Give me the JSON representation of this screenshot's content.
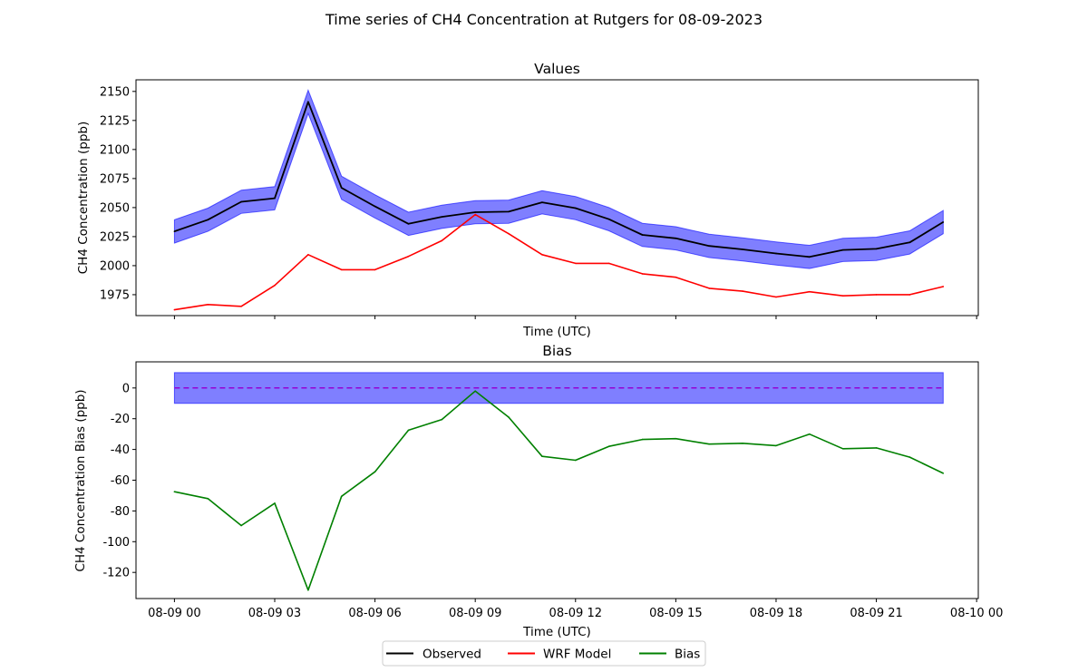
{
  "figure": {
    "suptitle": "Time series of CH4 Concentration at Rutgers for 08-09-2023"
  },
  "legend": {
    "placement": "bottom-center",
    "entries": [
      {
        "label": "Observed",
        "color": "#000000"
      },
      {
        "label": "WRF Model",
        "color": "#ff0000"
      },
      {
        "label": "Bias",
        "color": "#008000"
      }
    ]
  },
  "colors": {
    "observed": "#000000",
    "model": "#ff0000",
    "bias": "#008000",
    "band_fill": "#0000ff",
    "zero_line": "#9400d3"
  },
  "chart_data": [
    {
      "type": "line",
      "title": "Values",
      "xlabel": "Time (UTC)",
      "ylabel": "CH4 Concentration (ppb)",
      "x_tick_labels_shown": false,
      "yticks": [
        1975,
        2000,
        2025,
        2050,
        2075,
        2100,
        2125,
        2150
      ],
      "ylim": [
        1957,
        2160
      ],
      "xlim_hours": [
        -1.15,
        24.05
      ],
      "x_hours": [
        0,
        1,
        2,
        3,
        4,
        5,
        6,
        7,
        8,
        9,
        10,
        11,
        12,
        13,
        14,
        15,
        16,
        17,
        18,
        19,
        20,
        21,
        22,
        23
      ],
      "series": [
        {
          "name": "Observed",
          "color": "#000000",
          "values": [
            2029.5,
            2039.5,
            2055,
            2058,
            2141,
            2067,
            2051,
            2036,
            2042,
            2046,
            2046.5,
            2054.5,
            2049.5,
            2040,
            2026.5,
            2023.5,
            2017,
            2014,
            2010.5,
            2007.5,
            2013.5,
            2014.5,
            2020,
            2037.5
          ]
        },
        {
          "name": "WRF Model",
          "color": "#ff0000",
          "values": [
            1962,
            1966.5,
            1965,
            1983,
            2009.5,
            1996.5,
            1996.5,
            2008,
            2021.5,
            2044,
            2027.5,
            2009.5,
            2002,
            2002,
            1993,
            1990,
            1980.5,
            1978,
            1973,
            1977.5,
            1974,
            1975,
            1975,
            1982
          ]
        }
      ],
      "band": {
        "about": "Observed",
        "half_width": 10,
        "color": "#0000ff",
        "alpha": 0.5
      }
    },
    {
      "type": "line",
      "title": "Bias",
      "xlabel": "Time (UTC)",
      "ylabel": "CH4 Concentration Bias (ppb)",
      "yticks": [
        -120,
        -100,
        -80,
        -60,
        -40,
        -20,
        0
      ],
      "ylim": [
        -137,
        17
      ],
      "xlim_hours": [
        -1.15,
        24.05
      ],
      "xticks_hours": [
        0,
        3,
        6,
        9,
        12,
        15,
        18,
        21,
        24
      ],
      "xtick_labels": [
        "08-09 00",
        "08-09 03",
        "08-09 06",
        "08-09 09",
        "08-09 12",
        "08-09 15",
        "08-09 18",
        "08-09 21",
        "08-10 00"
      ],
      "x_hours": [
        0,
        1,
        2,
        3,
        4,
        5,
        6,
        7,
        8,
        9,
        10,
        11,
        12,
        13,
        14,
        15,
        16,
        17,
        18,
        19,
        20,
        21,
        22,
        23
      ],
      "series": [
        {
          "name": "Bias",
          "color": "#008000",
          "values": [
            -67.5,
            -72,
            -89.5,
            -75,
            -131.5,
            -70.5,
            -54.5,
            -27.5,
            -20.5,
            -2,
            -19,
            -44.5,
            -47,
            -38,
            -33.5,
            -33,
            -36.5,
            -36,
            -37.5,
            -30,
            -39.5,
            -39,
            -45,
            -55.5
          ]
        }
      ],
      "zero_line": {
        "value": 0,
        "style": "dashed",
        "color": "#9400d3"
      },
      "band": {
        "low": -10,
        "high": 10,
        "color": "#0000ff",
        "alpha": 0.5
      }
    }
  ]
}
